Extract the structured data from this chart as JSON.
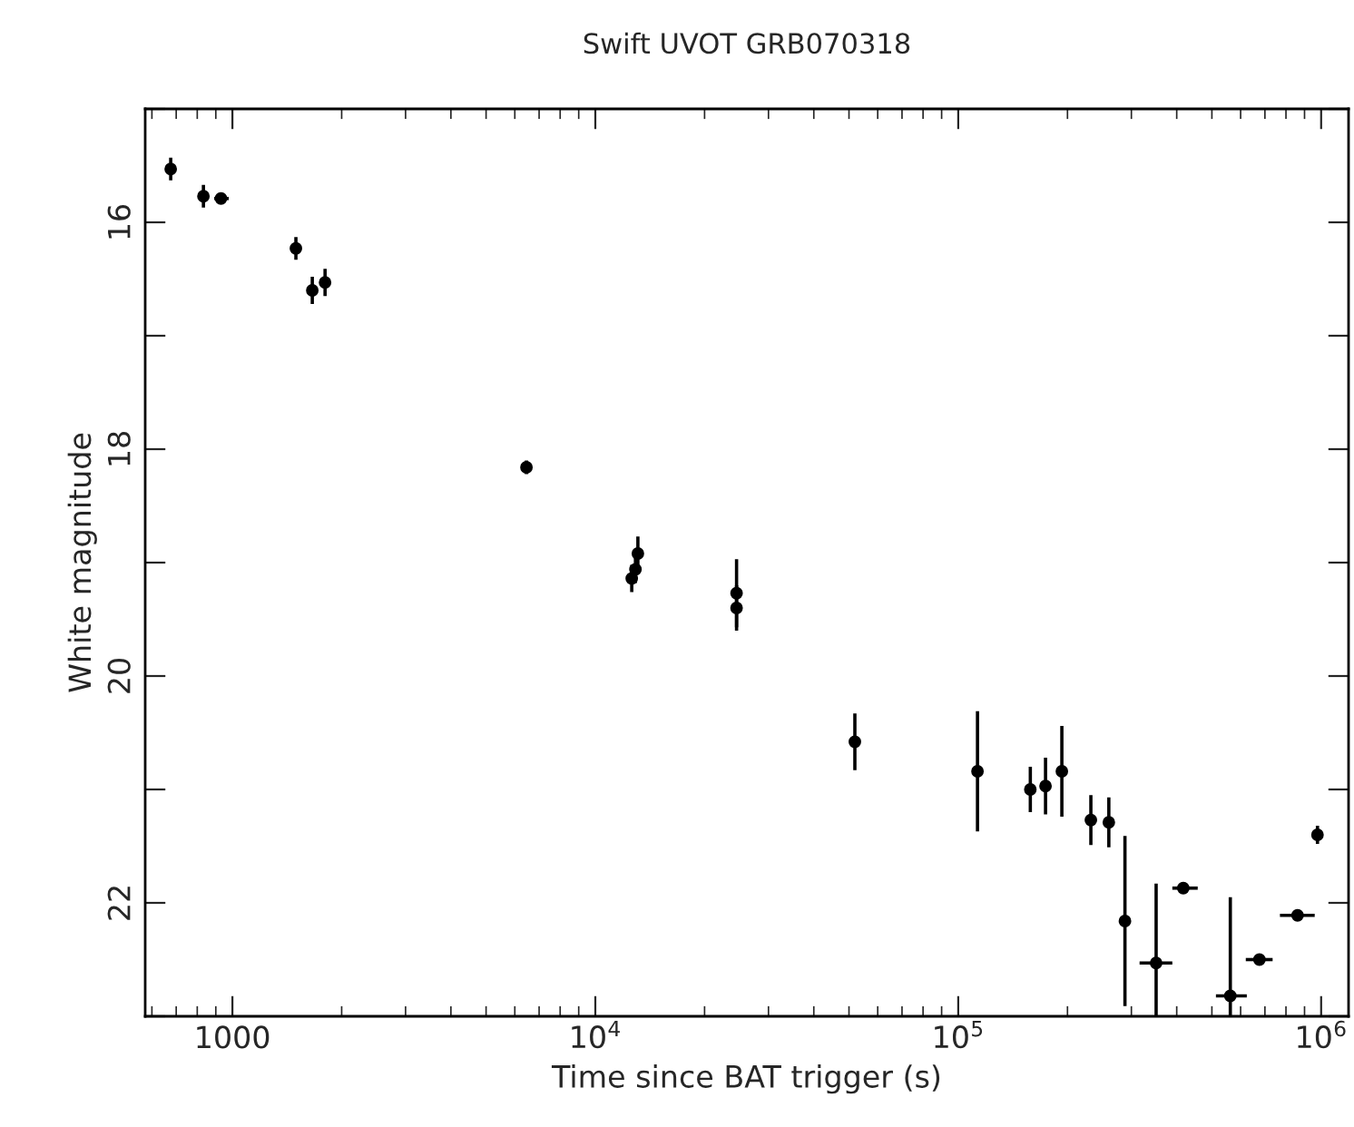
{
  "chart_data": {
    "type": "scatter",
    "title": "Swift UVOT GRB070318",
    "xlabel": "Time since BAT trigger (s)",
    "ylabel": "White magnitude",
    "log": "x",
    "marker": "circle",
    "grid": false,
    "color": "#000000",
    "x": [
      676,
      832,
      930,
      1496,
      1660,
      1800,
      6460,
      12600,
      12900,
      13100,
      24500,
      24500,
      51900,
      113000,
      158000,
      174000,
      193000,
      232000,
      260000,
      288000,
      351000,
      417000,
      562000,
      676000,
      861000,
      977000
    ],
    "values": [
      15.53,
      15.77,
      15.79,
      16.23,
      16.6,
      16.53,
      18.16,
      19.14,
      19.06,
      18.92,
      19.27,
      19.4,
      20.58,
      20.84,
      21.0,
      20.97,
      20.84,
      21.27,
      21.29,
      22.16,
      22.53,
      21.87,
      22.82,
      22.5,
      22.11,
      21.4
    ],
    "errors": [
      0.1,
      0.1,
      0.05,
      0.1,
      0.12,
      0.12,
      0.06,
      0.12,
      0.12,
      0.15,
      0.3,
      0.2,
      0.25,
      0.53,
      0.2,
      0.25,
      0.4,
      0.22,
      0.22,
      0.75,
      [
        21.83,
        23.0
      ],
      0.05,
      [
        21.95,
        23.0
      ],
      0.05,
      0.05,
      0.08
    ],
    "xerrors": [
      null,
      null,
      [
        891,
        977
      ],
      null,
      null,
      null,
      null,
      null,
      null,
      null,
      null,
      null,
      null,
      null,
      null,
      null,
      null,
      null,
      null,
      null,
      [
        316000,
        389000
      ],
      [
        389000,
        457000
      ],
      [
        513000,
        624000
      ],
      [
        620000,
        735000
      ],
      [
        770000,
        960000
      ],
      null
    ],
    "xlim": [
      575,
      1190000
    ],
    "ylim": [
      23,
      15
    ],
    "xticks": [
      1000,
      {
        "value": 10000,
        "label": "10$^{4}$"
      },
      {
        "value": 100000,
        "label": "10$^{5}$"
      },
      {
        "value": 1000000,
        "label": "10$^{6}$"
      }
    ],
    "yticks": [
      {
        "value": 15,
        "label": null
      },
      16,
      {
        "value": 17,
        "label": null
      },
      18,
      {
        "value": 19,
        "label": null
      },
      20,
      {
        "value": 21,
        "label": null
      },
      22,
      {
        "value": 23,
        "label": null
      }
    ]
  }
}
